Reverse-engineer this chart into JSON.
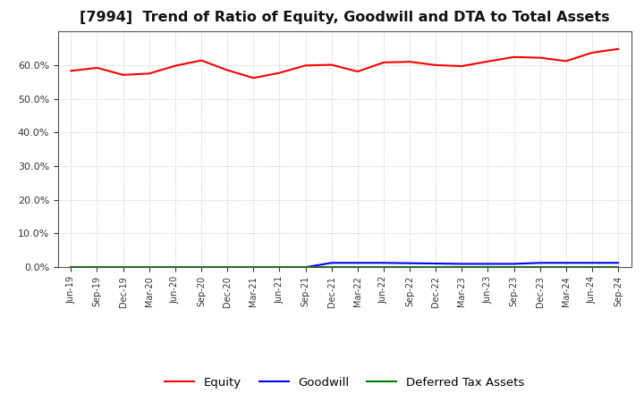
{
  "title": "[7994]  Trend of Ratio of Equity, Goodwill and DTA to Total Assets",
  "x_labels": [
    "Jun-19",
    "Sep-19",
    "Dec-19",
    "Mar-20",
    "Jun-20",
    "Sep-20",
    "Dec-20",
    "Mar-21",
    "Jun-21",
    "Sep-21",
    "Dec-21",
    "Mar-22",
    "Jun-22",
    "Sep-22",
    "Dec-22",
    "Mar-23",
    "Jun-23",
    "Sep-23",
    "Dec-23",
    "Mar-24",
    "Jun-24",
    "Sep-24"
  ],
  "equity": [
    0.583,
    0.592,
    0.571,
    0.575,
    0.598,
    0.614,
    0.585,
    0.562,
    0.577,
    0.599,
    0.601,
    0.581,
    0.608,
    0.61,
    0.6,
    0.597,
    0.611,
    0.624,
    0.622,
    0.612,
    0.637,
    0.648
  ],
  "goodwill": [
    0.0,
    0.0,
    0.0,
    0.0,
    0.0,
    0.0,
    0.0,
    0.0,
    0.0,
    0.0,
    0.013,
    0.013,
    0.013,
    0.012,
    0.011,
    0.01,
    0.01,
    0.01,
    0.013,
    0.013,
    0.013,
    0.013
  ],
  "dta": [
    0.001,
    0.001,
    0.001,
    0.001,
    0.001,
    0.001,
    0.001,
    0.001,
    0.001,
    0.001,
    0.001,
    0.001,
    0.001,
    0.001,
    0.001,
    0.001,
    0.001,
    0.001,
    0.001,
    0.001,
    0.001,
    0.001
  ],
  "equity_color": "#ff0000",
  "goodwill_color": "#0000ff",
  "dta_color": "#008000",
  "ylim": [
    0.0,
    0.7
  ],
  "yticks": [
    0.0,
    0.1,
    0.2,
    0.3,
    0.4,
    0.5,
    0.6
  ],
  "background_color": "#ffffff",
  "plot_bg_color": "#ffffff",
  "grid_color": "#bbbbbb",
  "title_fontsize": 11.5,
  "legend_labels": [
    "Equity",
    "Goodwill",
    "Deferred Tax Assets"
  ]
}
